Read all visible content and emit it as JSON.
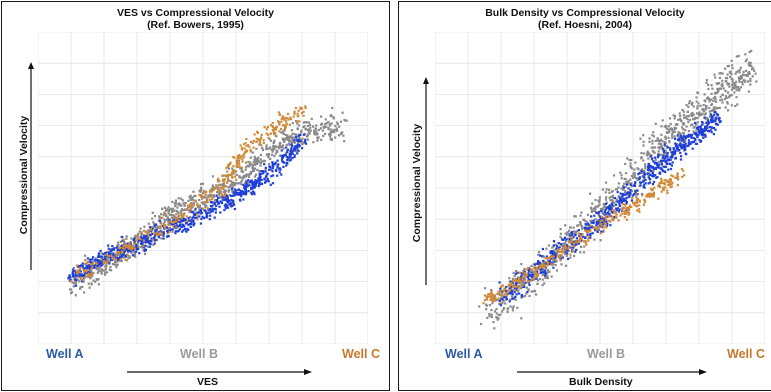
{
  "colors": {
    "well_a": "#1f3fd8",
    "well_b": "#8a8a8a",
    "well_c": "#d08a3a",
    "well_a_label": "#2d5aa8",
    "well_b_label": "#9a9a9a",
    "well_c_label": "#c8782c",
    "grid": "#e4e4e4"
  },
  "chart_data": [
    {
      "type": "scatter",
      "title": "VES vs Compressional Velocity",
      "subtitle": "(Ref. Bowers, 1995)",
      "xlabel": "VES",
      "ylabel": "Compressional Velocity",
      "xlim": [
        0,
        100
      ],
      "ylim": [
        0,
        100
      ],
      "grid": true,
      "legend": [
        "Well A",
        "Well B",
        "Well C"
      ],
      "series": [
        {
          "name": "Well A",
          "color_key": "well_a",
          "trend": [
            [
              10,
              22
            ],
            [
              20,
              28
            ],
            [
              30,
              32
            ],
            [
              40,
              38
            ],
            [
              50,
              42
            ],
            [
              60,
              48
            ],
            [
              70,
              55
            ],
            [
              80,
              66
            ]
          ],
          "spread": 5
        },
        {
          "name": "Well B",
          "color_key": "well_b",
          "trend": [
            [
              10,
              20
            ],
            [
              20,
              26
            ],
            [
              30,
              33
            ],
            [
              40,
              42
            ],
            [
              50,
              47
            ],
            [
              60,
              52
            ],
            [
              70,
              62
            ],
            [
              80,
              68
            ],
            [
              92,
              70
            ]
          ],
          "spread": 7
        },
        {
          "name": "Well C",
          "color_key": "well_c",
          "trend": [
            [
              10,
              22
            ],
            [
              25,
              30
            ],
            [
              40,
              39
            ],
            [
              55,
              50
            ],
            [
              62,
              62
            ],
            [
              72,
              70
            ],
            [
              80,
              75
            ]
          ],
          "spread": 5
        }
      ]
    },
    {
      "type": "scatter",
      "title": "Bulk Density vs Compressional Velocity",
      "subtitle": "(Ref. Hoesni, 2004)",
      "xlabel": "Bulk Density",
      "ylabel": "Compressional Velocity",
      "xlim": [
        0,
        100
      ],
      "ylim": [
        0,
        100
      ],
      "grid": true,
      "legend": [
        "Well A",
        "Well B",
        "Well C"
      ],
      "series": [
        {
          "name": "Well A",
          "color_key": "well_a",
          "trend": [
            [
              20,
              15
            ],
            [
              35,
              28
            ],
            [
              50,
              40
            ],
            [
              65,
              55
            ],
            [
              75,
              65
            ],
            [
              85,
              72
            ]
          ],
          "spread": 6
        },
        {
          "name": "Well B",
          "color_key": "well_b",
          "trend": [
            [
              15,
              10
            ],
            [
              30,
              22
            ],
            [
              45,
              38
            ],
            [
              60,
              55
            ],
            [
              72,
              68
            ],
            [
              85,
              80
            ],
            [
              95,
              88
            ]
          ],
          "spread": 10
        },
        {
          "name": "Well C",
          "color_key": "well_c",
          "trend": [
            [
              15,
              14
            ],
            [
              30,
              24
            ],
            [
              45,
              35
            ],
            [
              60,
              45
            ],
            [
              75,
              55
            ]
          ],
          "spread": 4
        }
      ]
    }
  ]
}
